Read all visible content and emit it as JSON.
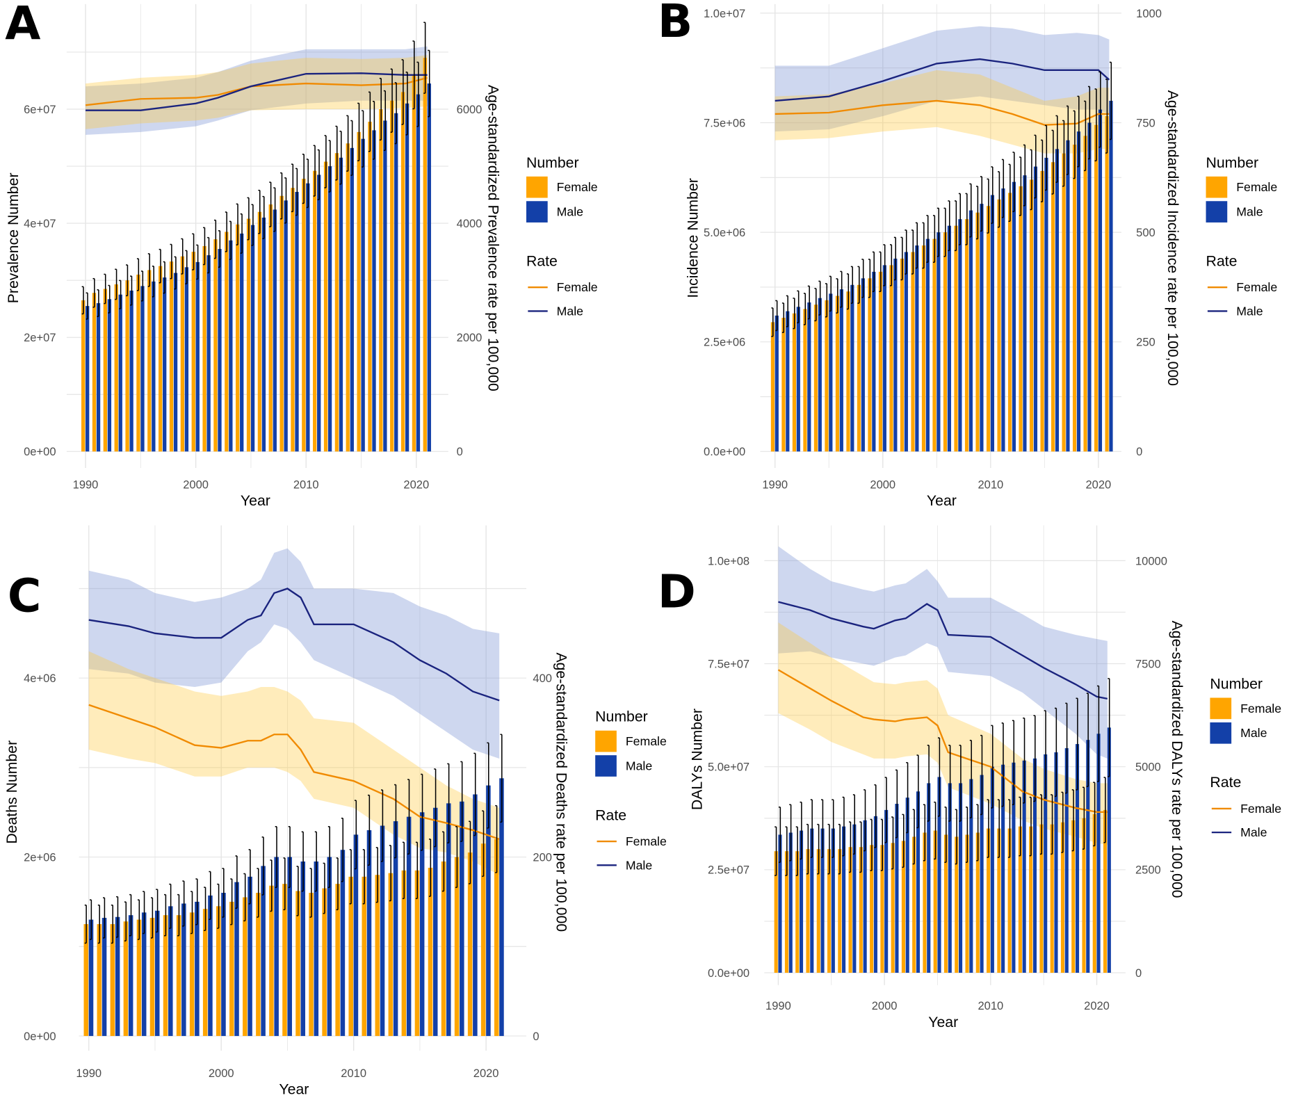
{
  "colors": {
    "female_bar": "#FFA500",
    "male_bar": "#1340A8",
    "female_line": "#F08A00",
    "male_line": "#1A237E",
    "female_band": "#FFC93C",
    "male_band": "#7E95D6",
    "error_bar": "#000000",
    "grid": "#E5E5E5"
  },
  "chart_data": [
    {
      "panel_label": "A",
      "type": "bar+line",
      "xlabel": "Year",
      "ylabel": "Prevalence Number",
      "y2label": "Age-standardized Prevalence rate per 100,000",
      "x_ticks": [
        "1990",
        "2000",
        "2010",
        "2020"
      ],
      "y_ticks": [
        {
          "value": 0,
          "label": "0e+00"
        },
        {
          "value": 20000000.0,
          "label": "2e+07"
        },
        {
          "value": 40000000.0,
          "label": "4e+07"
        },
        {
          "value": 60000000.0,
          "label": "6e+07"
        }
      ],
      "y2_ticks": [
        {
          "value": 0,
          "label": "0"
        },
        {
          "value": 2000,
          "label": "2000"
        },
        {
          "value": 4000,
          "label": "4000"
        },
        {
          "value": 6000,
          "label": "6000"
        }
      ],
      "legend": {
        "number_title": "Number",
        "rate_title": "Rate",
        "female": "Female",
        "male": "Male"
      },
      "grid": true,
      "legend_position": "right",
      "bars": {
        "years_from": 1990,
        "years_to": 2021,
        "female": [
          26500000.0,
          27800000.0,
          28500000.0,
          29300000.0,
          30000000.0,
          31000000.0,
          31800000.0,
          32500000.0,
          33300000.0,
          34200000.0,
          35000000.0,
          36000000.0,
          37200000.0,
          38500000.0,
          39800000.0,
          40800000.0,
          42000000.0,
          43300000.0,
          44800000.0,
          46200000.0,
          47800000.0,
          49200000.0,
          50800000.0,
          52300000.0,
          54000000.0,
          56000000.0,
          57800000.0,
          60000000.0,
          61500000.0,
          63000000.0,
          66000000.0,
          69000000.0
        ],
        "male": [
          25500000.0,
          26000000.0,
          26700000.0,
          27500000.0,
          28200000.0,
          29000000.0,
          29800000.0,
          30500000.0,
          31300000.0,
          32300000.0,
          33200000.0,
          34400000.0,
          35500000.0,
          37000000.0,
          38200000.0,
          39700000.0,
          41000000.0,
          42400000.0,
          44000000.0,
          45500000.0,
          47000000.0,
          48500000.0,
          50000000.0,
          51500000.0,
          53200000.0,
          54800000.0,
          56300000.0,
          58000000.0,
          59300000.0,
          61000000.0,
          62600000.0,
          64500000.0
        ],
        "uncertainty_pct": 9
      },
      "rate": {
        "years": [
          1990,
          1995,
          2000,
          2002,
          2005,
          2010,
          2015,
          2019,
          2021
        ],
        "female": [
          6070,
          6180,
          6200,
          6250,
          6400,
          6450,
          6420,
          6450,
          6550
        ],
        "female_lower": [
          5650,
          5750,
          5800,
          5850,
          5980,
          6000,
          6000,
          6020,
          6050
        ],
        "female_upper": [
          6450,
          6550,
          6600,
          6650,
          6800,
          6900,
          6880,
          6900,
          6950
        ],
        "male": [
          5980,
          5980,
          6100,
          6200,
          6400,
          6620,
          6630,
          6600,
          6600
        ],
        "male_lower": [
          5550,
          5600,
          5700,
          5800,
          5980,
          6100,
          6150,
          6150,
          6150
        ],
        "male_upper": [
          6400,
          6450,
          6550,
          6650,
          6850,
          7050,
          7050,
          7050,
          7100
        ]
      }
    },
    {
      "panel_label": "B",
      "type": "bar+line",
      "xlabel": "Year",
      "ylabel": "Incidence Number",
      "y2label": "Age-standardized Incidence rate per 100,000",
      "x_ticks": [
        "1990",
        "2000",
        "2010",
        "2020"
      ],
      "y_ticks": [
        {
          "value": 0,
          "label": "0.0e+00"
        },
        {
          "value": 2500000.0,
          "label": "2.5e+06"
        },
        {
          "value": 5000000.0,
          "label": "5.0e+06"
        },
        {
          "value": 7500000.0,
          "label": "7.5e+06"
        },
        {
          "value": 10000000.0,
          "label": "1.0e+07"
        }
      ],
      "y2_ticks": [
        {
          "value": 0,
          "label": "0"
        },
        {
          "value": 250,
          "label": "250"
        },
        {
          "value": 500,
          "label": "500"
        },
        {
          "value": 750,
          "label": "750"
        },
        {
          "value": 1000,
          "label": "1000"
        }
      ],
      "legend": {
        "number_title": "Number",
        "rate_title": "Rate",
        "female": "Female",
        "male": "Male"
      },
      "grid": true,
      "legend_position": "right",
      "bars": {
        "years_from": 1990,
        "years_to": 2021,
        "female": [
          2950000.0,
          3050000.0,
          3150000.0,
          3250000.0,
          3350000.0,
          3450000.0,
          3550000.0,
          3650000.0,
          3800000.0,
          3950000.0,
          4100000.0,
          4250000.0,
          4400000.0,
          4550000.0,
          4700000.0,
          4850000.0,
          5000000.0,
          5150000.0,
          5300000.0,
          5450000.0,
          5600000.0,
          5750000.0,
          5900000.0,
          6050000.0,
          6200000.0,
          6400000.0,
          6600000.0,
          6800000.0,
          7000000.0,
          7200000.0,
          7450000.0,
          7650000.0
        ],
        "male": [
          3100000.0,
          3200000.0,
          3300000.0,
          3400000.0,
          3500000.0,
          3600000.0,
          3700000.0,
          3800000.0,
          3950000.0,
          4100000.0,
          4250000.0,
          4400000.0,
          4550000.0,
          4700000.0,
          4850000.0,
          5000000.0,
          5150000.0,
          5300000.0,
          5500000.0,
          5650000.0,
          5850000.0,
          6000000.0,
          6150000.0,
          6300000.0,
          6500000.0,
          6700000.0,
          6900000.0,
          7100000.0,
          7300000.0,
          7500000.0,
          7800000.0,
          8000000.0
        ],
        "uncertainty_pct": 11
      },
      "rate": {
        "years": [
          1990,
          1995,
          2000,
          2005,
          2009,
          2012,
          2015,
          2018,
          2020,
          2021
        ],
        "female": [
          770,
          773,
          790,
          800,
          790,
          770,
          745,
          748,
          770,
          770
        ],
        "female_lower": [
          710,
          715,
          730,
          740,
          720,
          700,
          680,
          680,
          690,
          690
        ],
        "female_upper": [
          810,
          815,
          840,
          870,
          860,
          830,
          800,
          810,
          830,
          830
        ],
        "male": [
          800,
          810,
          845,
          885,
          895,
          885,
          870,
          870,
          870,
          848
        ],
        "male_lower": [
          730,
          735,
          765,
          800,
          810,
          800,
          790,
          780,
          780,
          770
        ],
        "male_upper": [
          880,
          880,
          920,
          960,
          970,
          965,
          950,
          955,
          950,
          940
        ]
      }
    },
    {
      "panel_label": "C",
      "type": "bar+line",
      "xlabel": "Year",
      "ylabel": "Deaths Number",
      "y2label": "Age-standardized Deaths rate per 100,000",
      "x_ticks": [
        "1990",
        "2000",
        "2010",
        "2020"
      ],
      "y_ticks": [
        {
          "value": 0,
          "label": "0e+00"
        },
        {
          "value": 2000000.0,
          "label": "2e+06"
        },
        {
          "value": 4000000.0,
          "label": "4e+06"
        }
      ],
      "y2_ticks": [
        {
          "value": 0,
          "label": "0"
        },
        {
          "value": 200,
          "label": "200"
        },
        {
          "value": 400,
          "label": "400"
        }
      ],
      "legend": {
        "number_title": "Number",
        "rate_title": "Rate",
        "female": "Female",
        "male": "Male"
      },
      "grid": true,
      "legend_position": "right",
      "bars": {
        "years_from": 1990,
        "years_to": 2021,
        "female": [
          1250000.0,
          1250000.0,
          1250000.0,
          1280000.0,
          1300000.0,
          1320000.0,
          1350000.0,
          1350000.0,
          1380000.0,
          1420000.0,
          1450000.0,
          1500000.0,
          1550000.0,
          1600000.0,
          1680000.0,
          1700000.0,
          1620000.0,
          1600000.0,
          1650000.0,
          1700000.0,
          1780000.0,
          1780000.0,
          1800000.0,
          1820000.0,
          1850000.0,
          1850000.0,
          1880000.0,
          1950000.0,
          2000000.0,
          2050000.0,
          2150000.0,
          2200000.0
        ],
        "male": [
          1300000.0,
          1320000.0,
          1330000.0,
          1350000.0,
          1380000.0,
          1400000.0,
          1450000.0,
          1480000.0,
          1500000.0,
          1570000.0,
          1600000.0,
          1720000.0,
          1780000.0,
          1900000.0,
          2000000.0,
          2000000.0,
          1950000.0,
          1950000.0,
          2000000.0,
          2080000.0,
          2250000.0,
          2300000.0,
          2350000.0,
          2400000.0,
          2450000.0,
          2500000.0,
          2550000.0,
          2600000.0,
          2620000.0,
          2700000.0,
          2800000.0,
          2880000.0
        ],
        "uncertainty_pct": 17
      },
      "rate": {
        "years": [
          1990,
          1993,
          1995,
          1998,
          2000,
          2002,
          2003,
          2004,
          2005,
          2006,
          2007,
          2010,
          2013,
          2015,
          2017,
          2019,
          2021
        ],
        "female": [
          370,
          355,
          345,
          325,
          322,
          330,
          330,
          337,
          337,
          320,
          295,
          285,
          265,
          245,
          238,
          230,
          220
        ],
        "female_lower": [
          320,
          310,
          305,
          290,
          290,
          300,
          300,
          300,
          295,
          285,
          265,
          255,
          225,
          210,
          205,
          195,
          180
        ],
        "female_upper": [
          430,
          410,
          400,
          385,
          380,
          385,
          390,
          390,
          385,
          375,
          355,
          350,
          320,
          300,
          280,
          265,
          255
        ],
        "male": [
          465,
          458,
          450,
          445,
          445,
          465,
          470,
          495,
          500,
          490,
          460,
          460,
          440,
          420,
          405,
          385,
          375
        ],
        "male_lower": [
          410,
          405,
          395,
          390,
          395,
          430,
          440,
          460,
          455,
          440,
          420,
          400,
          380,
          360,
          340,
          320,
          310
        ],
        "male_upper": [
          520,
          510,
          495,
          485,
          490,
          500,
          510,
          540,
          545,
          530,
          500,
          500,
          495,
          480,
          470,
          455,
          450
        ]
      }
    },
    {
      "panel_label": "D",
      "type": "bar+line",
      "xlabel": "Year",
      "ylabel": "DALYs Number",
      "y2label": "Age-standardized DALYs rate per 100,000",
      "x_ticks": [
        "1990",
        "2000",
        "2010",
        "2020"
      ],
      "y_ticks": [
        {
          "value": 0,
          "label": "0.0e+00"
        },
        {
          "value": 25000000.0,
          "label": "2.5e+07"
        },
        {
          "value": 50000000.0,
          "label": "5.0e+07"
        },
        {
          "value": 75000000.0,
          "label": "7.5e+07"
        },
        {
          "value": 100000000.0,
          "label": "1.0e+08"
        }
      ],
      "y2_ticks": [
        {
          "value": 0,
          "label": "0"
        },
        {
          "value": 2500,
          "label": "2500"
        },
        {
          "value": 5000,
          "label": "5000"
        },
        {
          "value": 7500,
          "label": "7500"
        },
        {
          "value": 10000,
          "label": "10000"
        }
      ],
      "legend": {
        "number_title": "Number",
        "rate_title": "Rate",
        "female": "Female",
        "male": "Male"
      },
      "grid": true,
      "legend_position": "right",
      "bars": {
        "years_from": 1990,
        "years_to": 2021,
        "female": [
          29500000.0,
          29500000.0,
          29500000.0,
          30000000.0,
          30000000.0,
          30000000.0,
          30000000.0,
          30500000.0,
          30500000.0,
          31000000.0,
          31000000.0,
          31500000.0,
          32000000.0,
          33000000.0,
          34000000.0,
          34500000.0,
          33500000.0,
          33000000.0,
          33500000.0,
          34000000.0,
          35000000.0,
          35000000.0,
          35000000.0,
          35500000.0,
          35500000.0,
          36000000.0,
          36000000.0,
          36500000.0,
          37000000.0,
          37500000.0,
          38500000.0,
          39500000.0
        ],
        "male": [
          33500000.0,
          34000000.0,
          34500000.0,
          35000000.0,
          35000000.0,
          35000000.0,
          35500000.0,
          36000000.0,
          37000000.0,
          38000000.0,
          39500000.0,
          41000000.0,
          42500000.0,
          44000000.0,
          46000000.0,
          47500000.0,
          46000000.0,
          46000000.0,
          47000000.0,
          48000000.0,
          50000000.0,
          50500000.0,
          51000000.0,
          51500000.0,
          52000000.0,
          53000000.0,
          53500000.0,
          54500000.0,
          55500000.0,
          56500000.0,
          58000000.0,
          59500000.0
        ],
        "uncertainty_pct": 20
      },
      "rate": {
        "years": [
          1990,
          1993,
          1995,
          1998,
          1999,
          2001,
          2002,
          2004,
          2005,
          2006,
          2010,
          2013,
          2015,
          2018,
          2020,
          2021
        ],
        "female": [
          7350,
          6900,
          6600,
          6200,
          6150,
          6100,
          6150,
          6200,
          6000,
          5350,
          5000,
          4400,
          4200,
          4000,
          3900,
          3900
        ],
        "female_lower": [
          6300,
          5900,
          5600,
          5300,
          5200,
          5200,
          5250,
          5300,
          5100,
          4500,
          4100,
          3700,
          3500,
          3300,
          3150,
          3100
        ],
        "female_upper": [
          8500,
          8000,
          7650,
          7200,
          7050,
          7000,
          7050,
          7100,
          6900,
          6250,
          5800,
          5200,
          4950,
          4700,
          4600,
          4600
        ],
        "male": [
          9000,
          8800,
          8600,
          8400,
          8350,
          8550,
          8600,
          8950,
          8800,
          8200,
          8150,
          7700,
          7400,
          7000,
          6700,
          6650
        ],
        "male_lower": [
          7750,
          7800,
          7650,
          7500,
          7450,
          7650,
          7700,
          8000,
          7900,
          7300,
          7200,
          6800,
          6400,
          5800,
          5300,
          5200
        ],
        "male_upper": [
          10350,
          9800,
          9500,
          9300,
          9250,
          9400,
          9450,
          9800,
          9500,
          9100,
          9100,
          8700,
          8400,
          8200,
          8100,
          8050
        ]
      }
    }
  ]
}
